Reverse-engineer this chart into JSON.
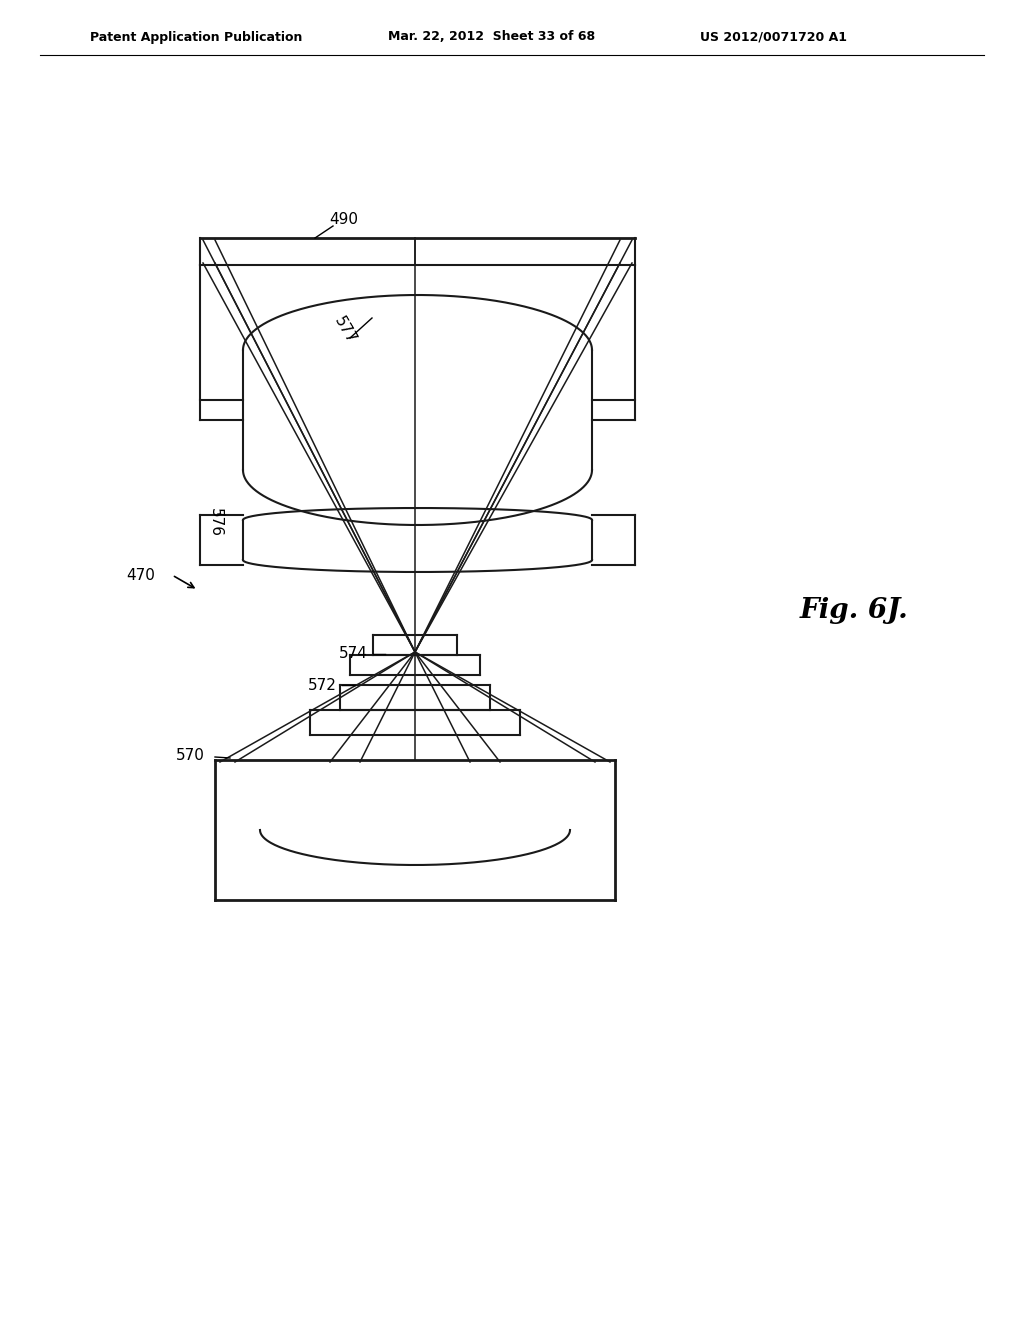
{
  "title_left": "Patent Application Publication",
  "title_mid": "Mar. 22, 2012  Sheet 33 of 68",
  "title_right": "US 2012/0071720 A1",
  "fig_label": "Fig. 6J.",
  "label_490": "490",
  "label_577": "577",
  "label_576": "576",
  "label_574": "574",
  "label_572": "572",
  "label_570": "570",
  "label_470": "470",
  "bg_color": "#ffffff",
  "line_color": "#1a1a1a"
}
